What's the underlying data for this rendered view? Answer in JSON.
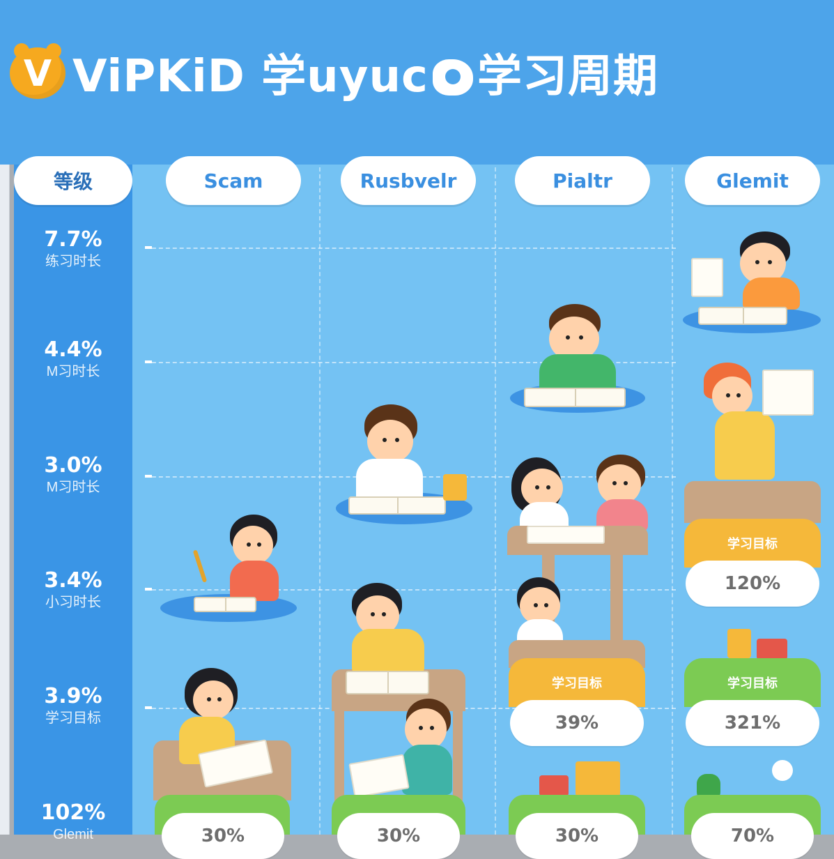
{
  "header": {
    "logo_letter": "V",
    "title_prefix": "ViPKiD 学uyuc",
    "title_suffix": "学习周期",
    "bg_color": "#4da4ea",
    "logo_color": "#f6a91f"
  },
  "columns": [
    {
      "label": "等级"
    },
    {
      "label": "Scam"
    },
    {
      "label": "Rusbvelr"
    },
    {
      "label": "Pialtr"
    },
    {
      "label": "Glemit"
    }
  ],
  "rows": [
    {
      "pct": "7.7%",
      "sub": "练习时长"
    },
    {
      "pct": "4.4%",
      "sub": "M习时长"
    },
    {
      "pct": "3.0%",
      "sub": "M习时长"
    },
    {
      "pct": "3.4%",
      "sub": "小习时长"
    },
    {
      "pct": "3.9%",
      "sub": "学习目标"
    },
    {
      "pct": "102%",
      "sub": "Glemit"
    }
  ],
  "cards": [
    {
      "head": "学习目标",
      "value": "120%",
      "color": "#f5b83a"
    },
    {
      "head": "学习目标",
      "value": "39%",
      "color": "#f5b83a"
    },
    {
      "head": "学习目标",
      "value": "321%",
      "color": "#7ccb53"
    }
  ],
  "bottom_values": [
    "30%",
    "30%",
    "30%",
    "70%"
  ]
}
